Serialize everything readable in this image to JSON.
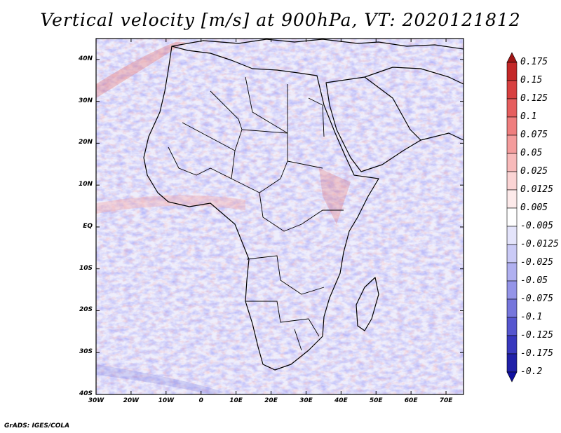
{
  "title": "Vertical velocity [m/s] at 900hPa, VT: 2020121812",
  "footer": "GrADS: IGES/COLA",
  "map": {
    "variable": "Vertical velocity",
    "units": "m/s",
    "level": "900hPa",
    "valid_time": "2020121812",
    "region": "Africa",
    "lon_range": [
      -30,
      75
    ],
    "lat_range": [
      -40,
      45
    ]
  },
  "axes": {
    "lat_labels": [
      "40N",
      "30N",
      "20N",
      "10N",
      "EQ",
      "10S",
      "20S",
      "30S",
      "40S"
    ],
    "lat_values": [
      40,
      30,
      20,
      10,
      0,
      -10,
      -20,
      -30,
      -40
    ],
    "lon_labels": [
      "30W",
      "20W",
      "10W",
      "0",
      "10E",
      "20E",
      "30E",
      "40E",
      "50E",
      "60E",
      "70E"
    ],
    "lon_values": [
      -30,
      -20,
      -10,
      0,
      10,
      20,
      30,
      40,
      50,
      60,
      70
    ]
  },
  "colorbar": {
    "labels": [
      "0.175",
      "0.15",
      "0.125",
      "0.1",
      "0.075",
      "0.05",
      "0.025",
      "0.0125",
      "0.005",
      "-0.005",
      "-0.0125",
      "-0.025",
      "-0.05",
      "-0.075",
      "-0.1",
      "-0.125",
      "-0.175",
      "-0.2"
    ],
    "colors": [
      "#a01414",
      "#c42828",
      "#d84040",
      "#e65e5e",
      "#ef7e7e",
      "#f49c9c",
      "#f8baba",
      "#fbd4d4",
      "#fdeaea",
      "#ffffff",
      "#e4e4fb",
      "#cacaf6",
      "#b0b0f0",
      "#9494e8",
      "#7676dc",
      "#5656cf",
      "#3838be",
      "#2020a8",
      "#1010a0"
    ]
  }
}
